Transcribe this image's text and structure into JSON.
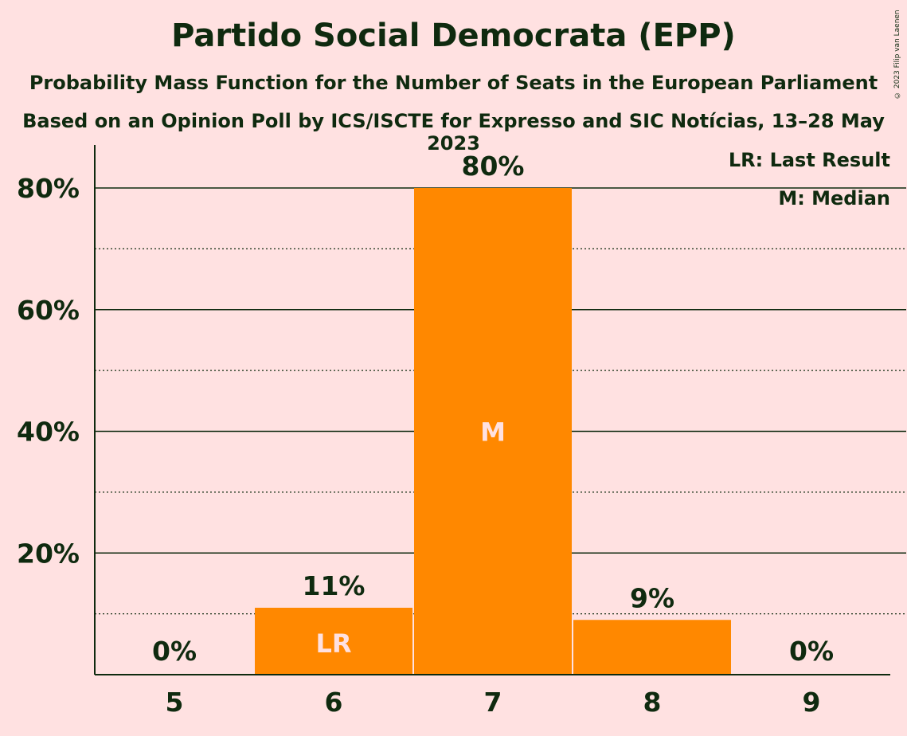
{
  "title": "Partido Social Democrata (EPP)",
  "subtitle": "Probability Mass Function for the Number of Seats in the European Parliament",
  "source": "Based on an Opinion Poll by ICS/ISCTE for Expresso and SIC Notícias, 13–28 May 2023",
  "copyright": "© 2023 Filip van Laenen",
  "legend": {
    "last_result": "LR: Last Result",
    "median": "M: Median"
  },
  "colors": {
    "bar": "#FF8800",
    "background": "#FFE1E1",
    "text": "#0F2A0F",
    "bar_label": "#FFE1E1"
  },
  "chart_data": {
    "type": "bar",
    "categories": [
      "5",
      "6",
      "7",
      "8",
      "9"
    ],
    "values": [
      0,
      11,
      80,
      9,
      0
    ],
    "value_labels": [
      "0%",
      "11%",
      "80%",
      "9%",
      "0%"
    ],
    "bar_annotations": [
      "",
      "LR",
      "M",
      "",
      ""
    ],
    "ylim": [
      0,
      87
    ],
    "yticks": [
      20,
      40,
      60,
      80
    ],
    "ytick_labels": [
      "20%",
      "40%",
      "60%",
      "80%"
    ],
    "minor_gridlines": [
      10,
      30,
      50,
      70
    ],
    "legend_placement": "top-right"
  }
}
